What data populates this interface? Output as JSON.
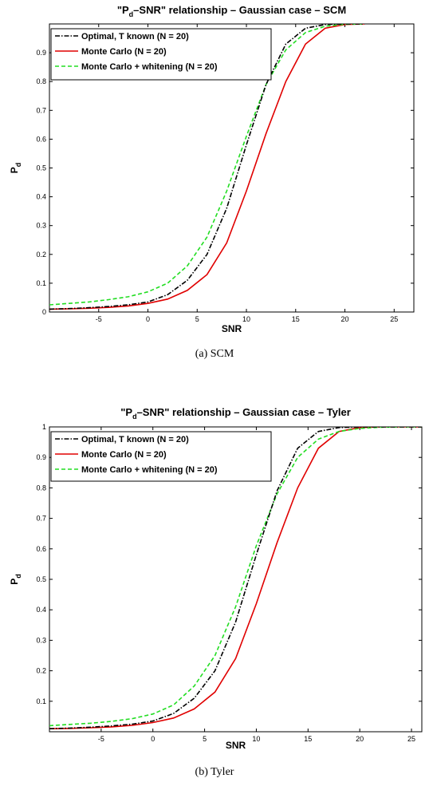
{
  "chart_data": [
    {
      "type": "line",
      "title": "\"P_d–SNR\" relationship – Gaussian case – SCM",
      "title_main": "P",
      "title_sub": "d",
      "title_pre": "\"",
      "title_rest": "–SNR\" relationship – Gaussian case – SCM",
      "xlabel": "SNR",
      "ylabel_main": "P",
      "ylabel_sub": "d",
      "xlim": [
        -10,
        27
      ],
      "ylim": [
        0,
        1
      ],
      "xticks": [
        -5,
        0,
        5,
        10,
        15,
        20,
        25
      ],
      "yticks": [
        0.1,
        0.2,
        0.3,
        0.4,
        0.5,
        0.6,
        0.7,
        0.8,
        0.9
      ],
      "ytick_labels": [
        "0.1",
        "0.2",
        "0.3",
        "0.4",
        "0.5",
        "0.6",
        "0.7",
        "0.8",
        "0.9"
      ],
      "origin_label": "0",
      "caption": "(a)  SCM",
      "legend_position": "top-left",
      "x": [
        -10,
        -8,
        -6,
        -4,
        -2,
        0,
        2,
        4,
        6,
        8,
        10,
        12,
        14,
        16,
        18,
        20,
        22
      ],
      "series": [
        {
          "name": "Optimal, T known (N = 20)",
          "color": "#000000",
          "style": "dashdot",
          "values": [
            0.01,
            0.012,
            0.015,
            0.019,
            0.025,
            0.035,
            0.06,
            0.11,
            0.2,
            0.36,
            0.58,
            0.79,
            0.93,
            0.985,
            0.998,
            1.0,
            1.0
          ]
        },
        {
          "name": "Monte Carlo (N = 20)",
          "color": "#e00000",
          "style": "solid",
          "values": [
            0.01,
            0.011,
            0.013,
            0.016,
            0.021,
            0.03,
            0.045,
            0.075,
            0.13,
            0.24,
            0.42,
            0.62,
            0.8,
            0.93,
            0.985,
            0.998,
            1.0
          ]
        },
        {
          "name": "Monte Carlo + whitening  (N = 20)",
          "color": "#22dd22",
          "style": "dashed",
          "values": [
            0.025,
            0.03,
            0.035,
            0.043,
            0.053,
            0.07,
            0.1,
            0.16,
            0.26,
            0.42,
            0.61,
            0.79,
            0.91,
            0.97,
            0.992,
            0.999,
            1.0
          ]
        }
      ]
    },
    {
      "type": "line",
      "title": "\"P_d–SNR\" relationship – Gaussian case – Tyler",
      "title_main": "P",
      "title_sub": "d",
      "title_pre": "\"",
      "title_rest": "–SNR\" relationship – Gaussian case – Tyler",
      "xlabel": "SNR",
      "ylabel_main": "P",
      "ylabel_sub": "d",
      "xlim": [
        -10,
        26
      ],
      "ylim": [
        0,
        1
      ],
      "xticks": [
        -5,
        0,
        5,
        10,
        15,
        20,
        25
      ],
      "yticks": [
        0.1,
        0.2,
        0.3,
        0.4,
        0.5,
        0.6,
        0.7,
        0.8,
        0.9,
        1.0
      ],
      "ytick_labels": [
        "0.1",
        "0.2",
        "0.3",
        "0.4",
        "0.5",
        "0.6",
        "0.7",
        "0.8",
        "0.9",
        "1"
      ],
      "origin_label": "",
      "caption": "(b)  Tyler",
      "legend_position": "top-left",
      "x": [
        -10,
        -8,
        -6,
        -4,
        -2,
        0,
        2,
        4,
        6,
        8,
        10,
        12,
        14,
        16,
        18,
        20,
        22,
        24,
        26
      ],
      "series": [
        {
          "name": "Optimal, T known (N = 20)",
          "color": "#000000",
          "style": "dashdot",
          "values": [
            0.01,
            0.012,
            0.015,
            0.019,
            0.025,
            0.035,
            0.06,
            0.11,
            0.2,
            0.36,
            0.58,
            0.79,
            0.93,
            0.985,
            0.998,
            1.0,
            1.0,
            1.0,
            1.0
          ]
        },
        {
          "name": "Monte Carlo (N = 20)",
          "color": "#e00000",
          "style": "solid",
          "values": [
            0.01,
            0.011,
            0.013,
            0.016,
            0.021,
            0.03,
            0.045,
            0.075,
            0.13,
            0.24,
            0.42,
            0.62,
            0.8,
            0.93,
            0.985,
            0.998,
            1.0,
            1.0,
            1.0
          ]
        },
        {
          "name": "Monte Carlo + whitening  (N = 20)",
          "color": "#22dd22",
          "style": "dashed",
          "values": [
            0.02,
            0.024,
            0.028,
            0.034,
            0.043,
            0.058,
            0.088,
            0.15,
            0.25,
            0.41,
            0.61,
            0.78,
            0.9,
            0.96,
            0.985,
            0.995,
            0.999,
            1.0,
            1.0
          ]
        }
      ]
    }
  ]
}
